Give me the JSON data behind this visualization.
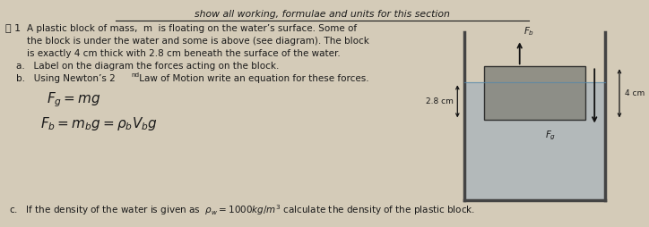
{
  "title_text": "show all working, formulae and units for this section",
  "main_text_line1": "A plastic block of mass,  m  is floating on the water’s surface. Some of",
  "main_text_line2": "the block is under the water and some is above (see diagram). The block",
  "main_text_line3": "is exactly 4 cm thick with 2.8 cm beneath the surface of the water.",
  "part_a": "a.   Label on the diagram the forces acting on the block.",
  "part_b": "b.   Using Newton’s 2",
  "part_b2": "nd",
  "part_b3": " Law of Motion write an equation for these forces.",
  "eq1": "$F_g = mg$",
  "eq2": "$F_b = m_b g = \\rho_b V_b g$",
  "part_c": "c.   If the density of the water is given as  $\\rho_w = 1000 kg/m^3$ calculate the density of the plastic block.",
  "bg_color": "#d4cbb8",
  "text_color": "#1a1a1a",
  "water_color": "#a8b4bc",
  "block_color": "#888880",
  "container_color": "#444444",
  "arrow_color": "#111111",
  "dim_label_28": "2.8 cm",
  "dim_label_4": "4 cm",
  "fb_label": "$F_b$",
  "fg_label": "$F_g$"
}
